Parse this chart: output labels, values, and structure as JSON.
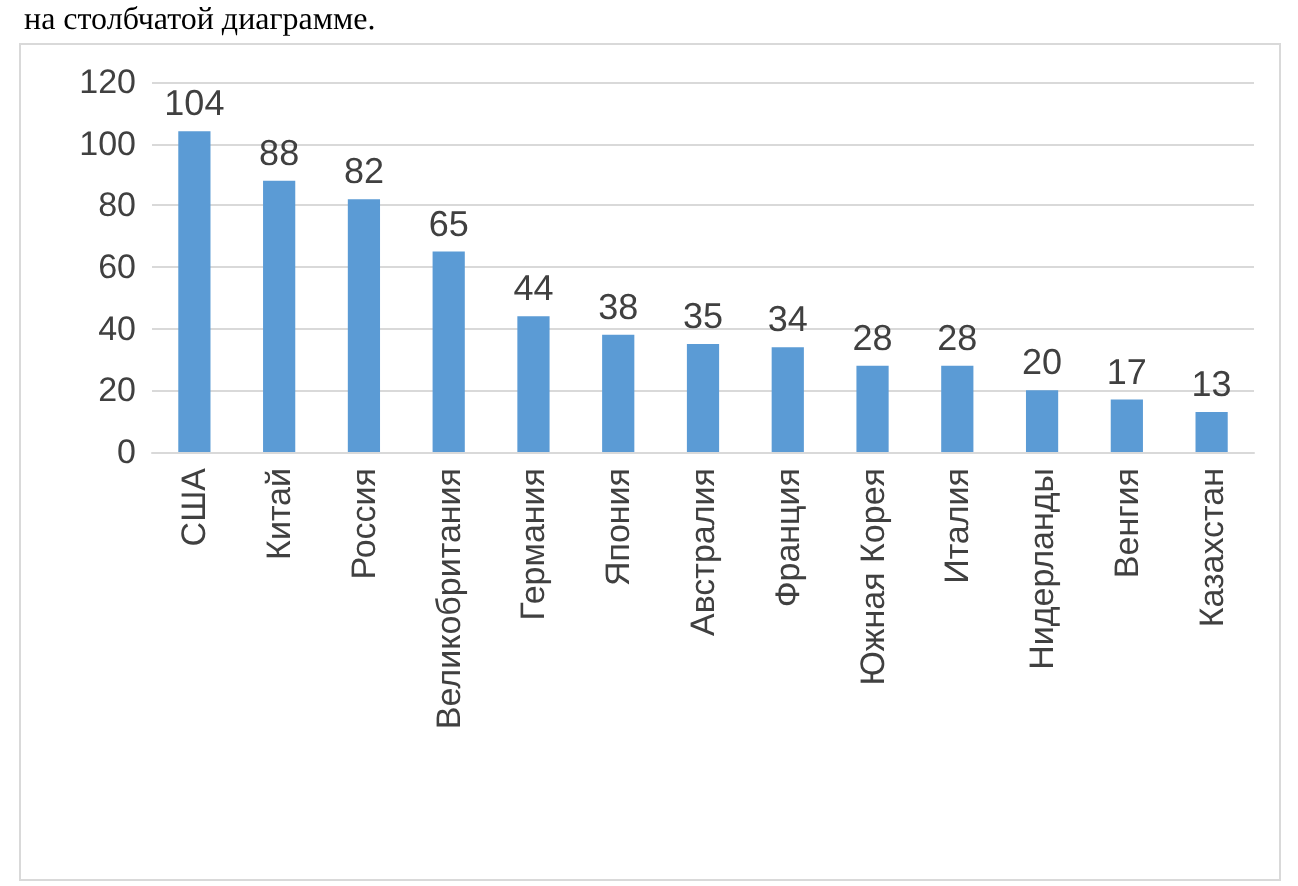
{
  "chart_data": {
    "type": "bar",
    "annotations": [
      "на столбчатой диаграмме."
    ],
    "categories": [
      "США",
      "Китай",
      "Россия",
      "Великобритания",
      "Германия",
      "Япония",
      "Австралия",
      "Франция",
      "Южная Корея",
      "Италия",
      "Нидерланды",
      "Венгия",
      "Казахстан"
    ],
    "values": [
      104,
      88,
      82,
      65,
      44,
      38,
      35,
      34,
      28,
      28,
      20,
      17,
      13
    ],
    "color": "#5b9bd5",
    "ylim": [
      0,
      120
    ],
    "yticks": [
      0,
      20,
      40,
      60,
      80,
      100,
      120
    ],
    "grid": "y",
    "data_labels": true
  }
}
